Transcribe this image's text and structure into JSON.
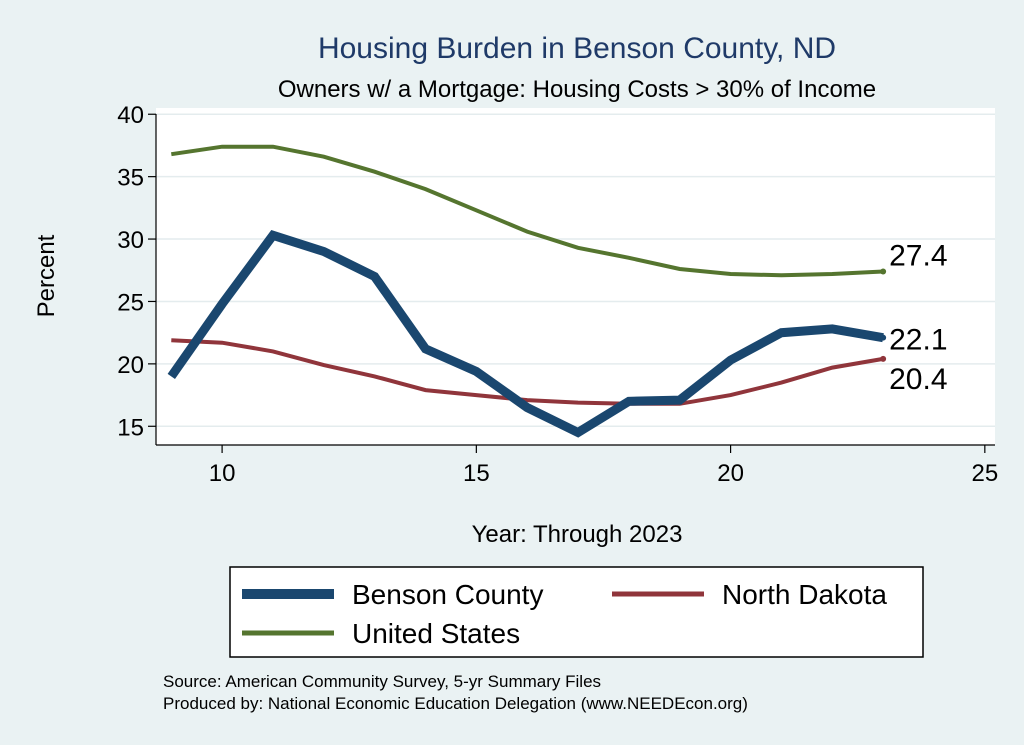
{
  "chart_data": {
    "type": "line",
    "title": "Housing Burden in Benson County, ND",
    "subtitle": "Owners w/ a Mortgage: Housing Costs > 30% of Income",
    "xlabel": "Year: Through 2023",
    "ylabel": "Percent",
    "xlim": [
      8.7,
      25.2
    ],
    "ylim": [
      13.5,
      40.5
    ],
    "xticks": [
      10,
      15,
      20,
      25
    ],
    "yticks": [
      15,
      20,
      25,
      30,
      35,
      40
    ],
    "grid": true,
    "x": [
      9,
      10,
      11,
      12,
      13,
      14,
      15,
      16,
      17,
      18,
      19,
      20,
      21,
      22,
      23
    ],
    "series": [
      {
        "name": "Benson County",
        "color": "#1a476f",
        "values": [
          19.0,
          24.8,
          30.3,
          29.0,
          27.0,
          21.2,
          19.4,
          16.5,
          14.5,
          17.0,
          17.1,
          20.3,
          22.5,
          22.8,
          22.1
        ],
        "end_label": "22.1"
      },
      {
        "name": "North Dakota",
        "color": "#90353b",
        "values": [
          21.9,
          21.7,
          21.0,
          19.9,
          19.0,
          17.9,
          17.5,
          17.1,
          16.9,
          16.8,
          16.8,
          17.5,
          18.5,
          19.7,
          20.4
        ],
        "end_label": "20.4"
      },
      {
        "name": "United States",
        "color": "#55752f",
        "values": [
          36.8,
          37.4,
          37.4,
          36.6,
          35.4,
          34.0,
          32.3,
          30.6,
          29.3,
          28.5,
          27.6,
          27.2,
          27.1,
          27.2,
          27.4
        ],
        "end_label": "27.4"
      }
    ],
    "legend": {
      "position": "bottom",
      "entries": [
        "Benson County",
        "North Dakota",
        "United States"
      ]
    },
    "source_lines": [
      "Source: American Community Survey, 5-yr Summary Files",
      "Produced by: National Economic Education Delegation (www.NEEDEcon.org)"
    ]
  }
}
